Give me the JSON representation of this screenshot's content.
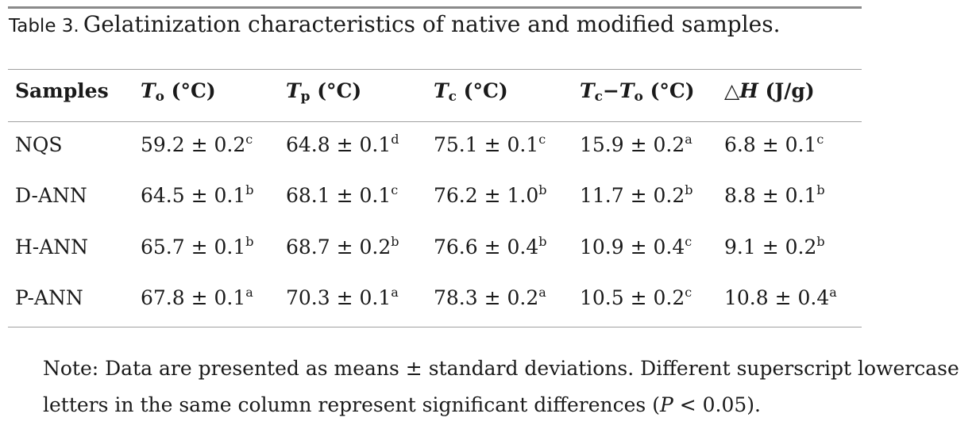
{
  "caption": {
    "label": "Table 3.",
    "text": "Gelatinization characteristics of native and modified samples."
  },
  "header": {
    "samples": "Samples",
    "to": {
      "sym": "T",
      "sub": "o",
      "unit": " (°C)"
    },
    "tp": {
      "sym": "T",
      "sub": "p",
      "unit": " (°C)"
    },
    "tc": {
      "sym": "T",
      "sub": "c",
      "unit": " (°C)"
    },
    "range": {
      "sym1": "T",
      "sub1": "c",
      "minus": "−",
      "sym2": "T",
      "sub2": "o",
      "unit": " (°C)"
    },
    "dh": {
      "delta": "△",
      "sym": "H",
      "unit": " (J/g)"
    }
  },
  "rows": [
    {
      "sample": "NQS",
      "cells": [
        {
          "v": "59.2 ± 0.2",
          "s": "c"
        },
        {
          "v": "64.8 ± 0.1",
          "s": "d"
        },
        {
          "v": "75.1 ± 0.1",
          "s": "c"
        },
        {
          "v": "15.9 ± 0.2",
          "s": "a"
        },
        {
          "v": "6.8 ± 0.1",
          "s": "c"
        }
      ]
    },
    {
      "sample": "D-ANN",
      "cells": [
        {
          "v": "64.5 ± 0.1",
          "s": "b"
        },
        {
          "v": "68.1 ± 0.1",
          "s": "c"
        },
        {
          "v": "76.2 ± 1.0",
          "s": "b"
        },
        {
          "v": "11.7 ± 0.2",
          "s": "b"
        },
        {
          "v": "8.8 ± 0.1",
          "s": "b"
        }
      ]
    },
    {
      "sample": "H-ANN",
      "cells": [
        {
          "v": "65.7 ± 0.1",
          "s": "b"
        },
        {
          "v": "68.7 ± 0.2",
          "s": "b"
        },
        {
          "v": "76.6 ± 0.4",
          "s": "b"
        },
        {
          "v": "10.9 ± 0.4",
          "s": "c"
        },
        {
          "v": "9.1 ± 0.2",
          "s": "b"
        }
      ]
    },
    {
      "sample": "P-ANN",
      "cells": [
        {
          "v": "67.8 ± 0.1",
          "s": "a"
        },
        {
          "v": "70.3 ± 0.1",
          "s": "a"
        },
        {
          "v": "78.3 ± 0.2",
          "s": "a"
        },
        {
          "v": "10.5 ± 0.2",
          "s": "c"
        },
        {
          "v": "10.8 ± 0.4",
          "s": "a"
        }
      ]
    }
  ],
  "note": {
    "line1": "Note: Data are presented as means ± standard deviations. Different superscript lowercase",
    "line2_pre": "letters in the same column represent significant differences (",
    "line2_p": "P",
    "line2_post": " < 0.05)."
  }
}
